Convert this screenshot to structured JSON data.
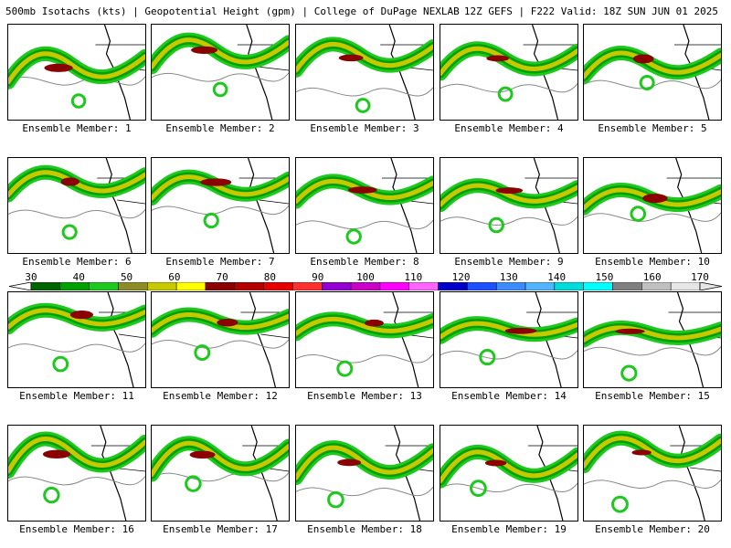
{
  "header": {
    "left_text": "500mb Isotachs (kts) | Geopotential Height (gpm) | College of DuPage NEXLAB",
    "right_text": "12Z GEFS | F222 Valid: 18Z SUN JUN 01 2025"
  },
  "colorbar": {
    "tick_labels": [
      "30",
      "40",
      "50",
      "60",
      "70",
      "80",
      "90",
      "100",
      "110",
      "120",
      "130",
      "140",
      "150",
      "160",
      "170"
    ],
    "colors": [
      "#006400",
      "#00a000",
      "#1ec81e",
      "#8c8c28",
      "#c8c800",
      "#ffff00",
      "#8b0000",
      "#b40000",
      "#e60000",
      "#ff3030",
      "#9400d3",
      "#c800c8",
      "#ff00ff",
      "#ff64ff",
      "#0000c8",
      "#1e50ff",
      "#3c8cff",
      "#50b4ff",
      "#00dcdc",
      "#00ffff",
      "#808080",
      "#c0c0c0",
      "#e6e6e6"
    ]
  },
  "members": [
    {
      "label": "Ensemble Member: 1"
    },
    {
      "label": "Ensemble Member: 2"
    },
    {
      "label": "Ensemble Member: 3"
    },
    {
      "label": "Ensemble Member: 4"
    },
    {
      "label": "Ensemble Member: 5"
    },
    {
      "label": "Ensemble Member: 6"
    },
    {
      "label": "Ensemble Member: 7"
    },
    {
      "label": "Ensemble Member: 8"
    },
    {
      "label": "Ensemble Member: 9"
    },
    {
      "label": "Ensemble Member: 10"
    },
    {
      "label": "Ensemble Member: 11"
    },
    {
      "label": "Ensemble Member: 12"
    },
    {
      "label": "Ensemble Member: 13"
    },
    {
      "label": "Ensemble Member: 14"
    },
    {
      "label": "Ensemble Member: 15"
    },
    {
      "label": "Ensemble Member: 16"
    },
    {
      "label": "Ensemble Member: 17"
    },
    {
      "label": "Ensemble Member: 18"
    },
    {
      "label": "Ensemble Member: 19"
    },
    {
      "label": "Ensemble Member: 20"
    }
  ]
}
